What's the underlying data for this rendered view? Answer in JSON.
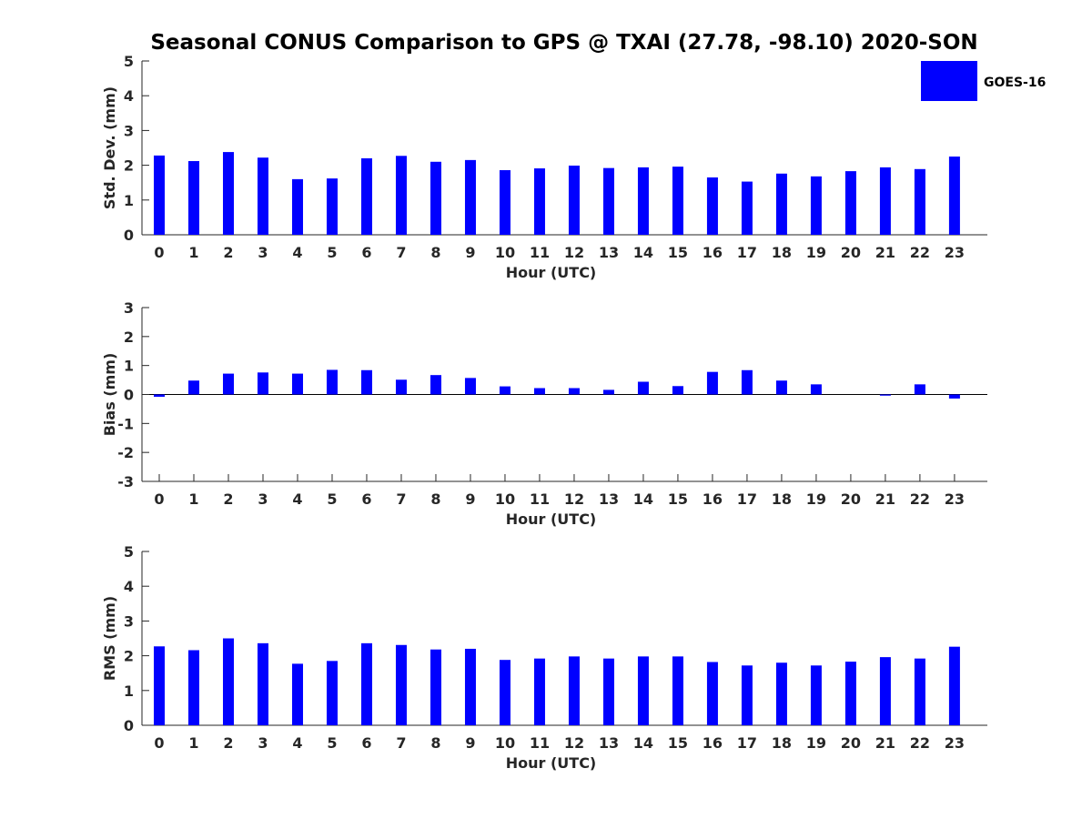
{
  "figure": {
    "title": "Seasonal CONUS Comparison to GPS @ TXAI (27.78, -98.10) 2020-SON",
    "legend": {
      "label": "GOES-16",
      "color": "#0000FF",
      "placement": "top-right"
    }
  },
  "chart_data": [
    {
      "type": "bar",
      "categories": [
        "0",
        "1",
        "2",
        "3",
        "4",
        "5",
        "6",
        "7",
        "8",
        "9",
        "10",
        "11",
        "12",
        "13",
        "14",
        "15",
        "16",
        "17",
        "18",
        "19",
        "20",
        "21",
        "22",
        "23"
      ],
      "series": [
        {
          "name": "GOES-16",
          "color": "#0000FF",
          "values": [
            2.28,
            2.12,
            2.38,
            2.22,
            1.6,
            1.62,
            2.2,
            2.27,
            2.1,
            2.15,
            1.86,
            1.91,
            1.99,
            1.92,
            1.94,
            1.96,
            1.65,
            1.53,
            1.76,
            1.68,
            1.83,
            1.94,
            1.89,
            2.25
          ]
        }
      ],
      "xlabel": "Hour (UTC)",
      "ylabel": "Std. Dev. (mm)",
      "ylim": [
        0,
        5
      ],
      "yticks": [
        "0",
        "1",
        "2",
        "3",
        "4",
        "5"
      ],
      "grid": false
    },
    {
      "type": "bar",
      "categories": [
        "0",
        "1",
        "2",
        "3",
        "4",
        "5",
        "6",
        "7",
        "8",
        "9",
        "10",
        "11",
        "12",
        "13",
        "14",
        "15",
        "16",
        "17",
        "18",
        "19",
        "20",
        "21",
        "22",
        "23"
      ],
      "series": [
        {
          "name": "GOES-16",
          "color": "#0000FF",
          "values": [
            -0.08,
            0.48,
            0.72,
            0.76,
            0.72,
            0.85,
            0.84,
            0.51,
            0.67,
            0.57,
            0.28,
            0.22,
            0.22,
            0.16,
            0.44,
            0.29,
            0.78,
            0.84,
            0.48,
            0.35,
            0.0,
            -0.04,
            0.35,
            -0.14
          ]
        }
      ],
      "xlabel": "Hour (UTC)",
      "ylabel": "Bias (mm)",
      "ylim": [
        -3,
        3
      ],
      "yticks": [
        "-3",
        "-2",
        "-1",
        "0",
        "1",
        "2",
        "3"
      ],
      "grid": false
    },
    {
      "type": "bar",
      "categories": [
        "0",
        "1",
        "2",
        "3",
        "4",
        "5",
        "6",
        "7",
        "8",
        "9",
        "10",
        "11",
        "12",
        "13",
        "14",
        "15",
        "16",
        "17",
        "18",
        "19",
        "20",
        "21",
        "22",
        "23"
      ],
      "series": [
        {
          "name": "GOES-16",
          "color": "#0000FF",
          "values": [
            2.27,
            2.16,
            2.5,
            2.36,
            1.77,
            1.85,
            2.36,
            2.31,
            2.18,
            2.2,
            1.88,
            1.92,
            1.98,
            1.92,
            1.98,
            1.98,
            1.82,
            1.72,
            1.8,
            1.72,
            1.83,
            1.96,
            1.92,
            2.26
          ]
        }
      ],
      "xlabel": "Hour (UTC)",
      "ylabel": "RMS (mm)",
      "ylim": [
        0,
        5
      ],
      "yticks": [
        "0",
        "1",
        "2",
        "3",
        "4",
        "5"
      ],
      "grid": false
    }
  ]
}
